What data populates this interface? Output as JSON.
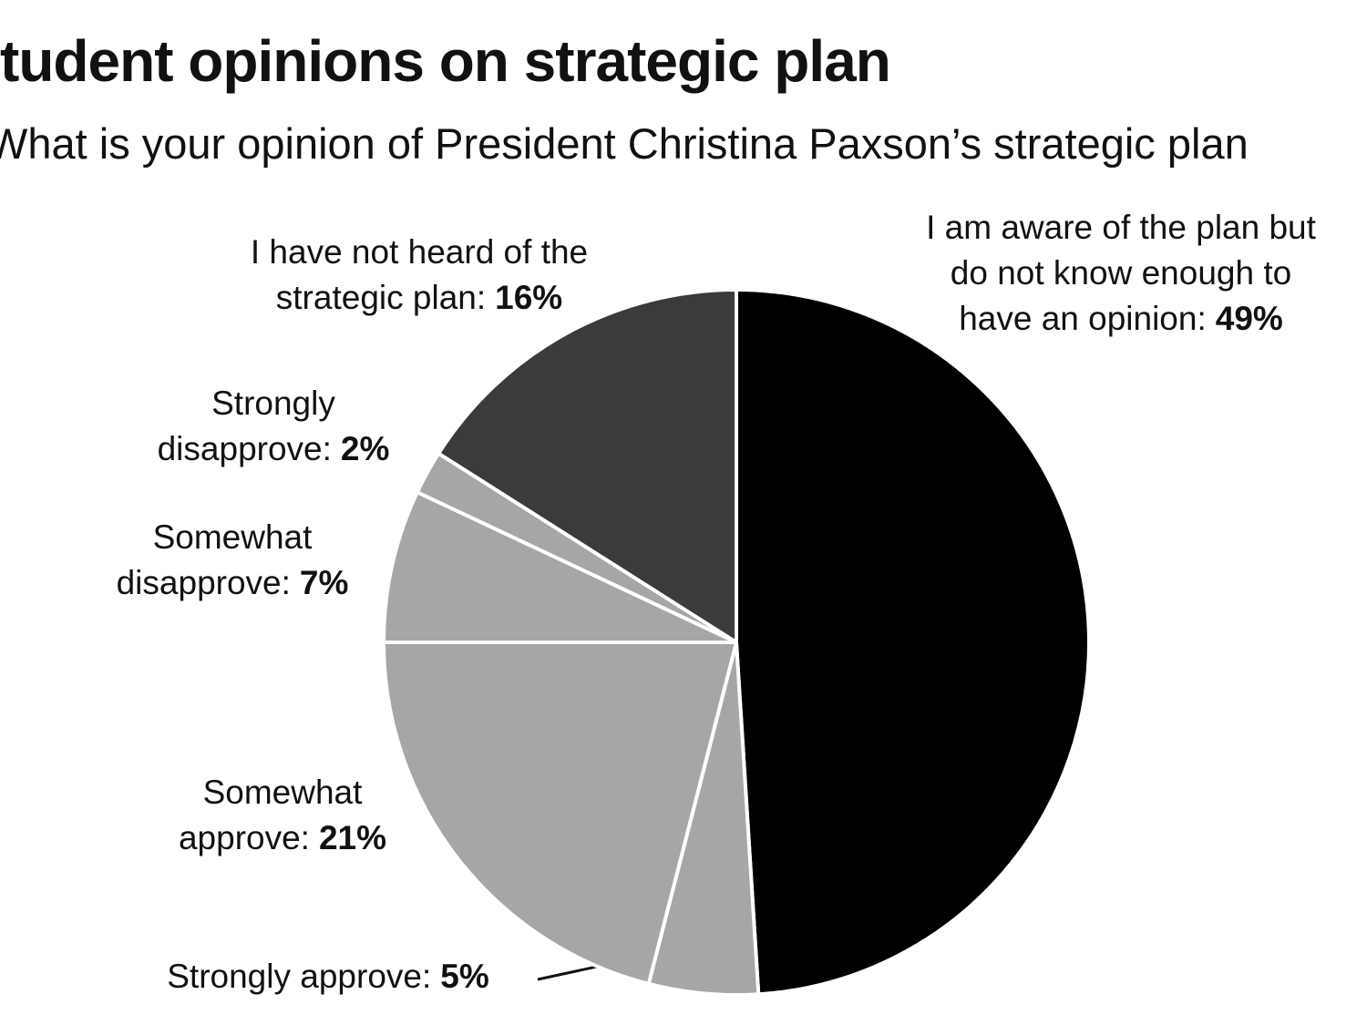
{
  "chart_data": {
    "type": "pie",
    "title": "tudent opinions on strategic plan",
    "subtitle": "What is your opinion of President Christina Paxson’s strategic plan",
    "categories": [
      "I am aware of the plan but do not know enough to have an opinion:",
      "Strongly approve:",
      "Somewhat approve:",
      "Somewhat disapprove:",
      "Strongly disapprove:",
      "I have not heard of the strategic plan:"
    ],
    "values": [
      49,
      5,
      21,
      7,
      2,
      16
    ],
    "value_labels": [
      "49%",
      "5%",
      "21%",
      "7%",
      "2%",
      "16%"
    ],
    "colors": [
      "#000000",
      "#a4a6a8",
      "#a4a6a8",
      "#a4a6a8",
      "#a4a6a8",
      "#3a3b3d"
    ]
  }
}
